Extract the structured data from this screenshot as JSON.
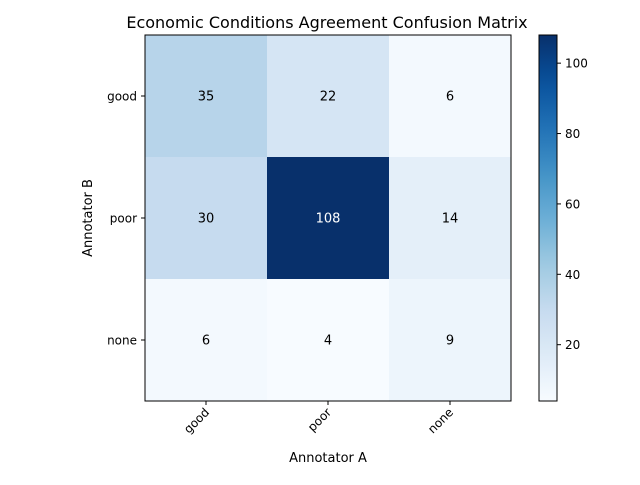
{
  "chart_data": {
    "type": "heatmap",
    "title": "Economic Conditions Agreement Confusion Matrix",
    "xlabel": "Annotator A",
    "ylabel": "Annotator B",
    "x_categories": [
      "good",
      "poor",
      "none"
    ],
    "y_categories": [
      "good",
      "poor",
      "none"
    ],
    "values": [
      [
        35,
        22,
        6
      ],
      [
        30,
        108,
        14
      ],
      [
        6,
        4,
        9
      ]
    ],
    "colormap": "Blues",
    "vmin": 4,
    "vmax": 108,
    "colorbar_ticks": [
      20,
      40,
      60,
      80,
      100
    ],
    "grid": false,
    "text_color_dark": "#000000",
    "text_color_light": "#ffffff"
  }
}
